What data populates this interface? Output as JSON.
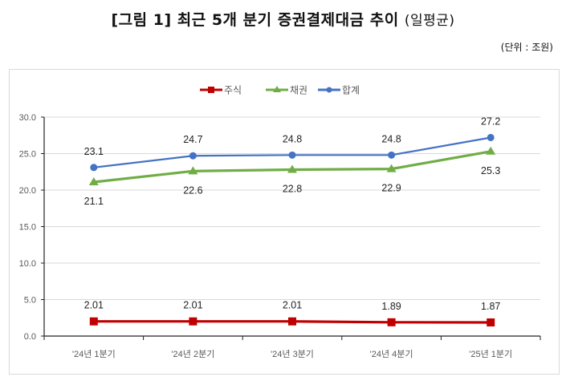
{
  "header": {
    "title": "[그림 1] 최근 5개 분기 증권결제대금 추이",
    "subtitle": "(일평균)",
    "unit": "(단위 : 조원)"
  },
  "legend": [
    {
      "label": "주식",
      "color": "#c00000",
      "marker": "square"
    },
    {
      "label": "채권",
      "color": "#70ad47",
      "marker": "triangle"
    },
    {
      "label": "합계",
      "color": "#4472c4",
      "marker": "circle"
    }
  ],
  "chart_data": {
    "type": "line",
    "title": "[그림 1] 최근 5개 분기 증권결제대금 추이 (일평균)",
    "xlabel": "",
    "ylabel": "",
    "unit": "조원",
    "categories": [
      "'24년 1분기",
      "'24년 2분기",
      "'24년 3분기",
      "'24년 4분기",
      "'25년 1분기"
    ],
    "series": [
      {
        "name": "주식",
        "color": "#c00000",
        "values": [
          2.01,
          2.01,
          2.01,
          1.89,
          1.87
        ],
        "labels": [
          "2.01",
          "2.01",
          "2.01",
          "1.89",
          "1.87"
        ]
      },
      {
        "name": "채권",
        "color": "#70ad47",
        "values": [
          21.1,
          22.6,
          22.8,
          22.9,
          25.3
        ],
        "labels": [
          "21.1",
          "22.6",
          "22.8",
          "22.9",
          "25.3"
        ]
      },
      {
        "name": "합계",
        "color": "#4472c4",
        "values": [
          23.1,
          24.7,
          24.8,
          24.8,
          27.2
        ],
        "labels": [
          "23.1",
          "24.7",
          "24.8",
          "24.8",
          "27.2"
        ]
      }
    ],
    "ylim": [
      0,
      30
    ],
    "yticks": [
      "0.0",
      "5.0",
      "10.0",
      "15.0",
      "20.0",
      "25.0",
      "30.0"
    ],
    "grid": true,
    "legend_position": "top"
  }
}
